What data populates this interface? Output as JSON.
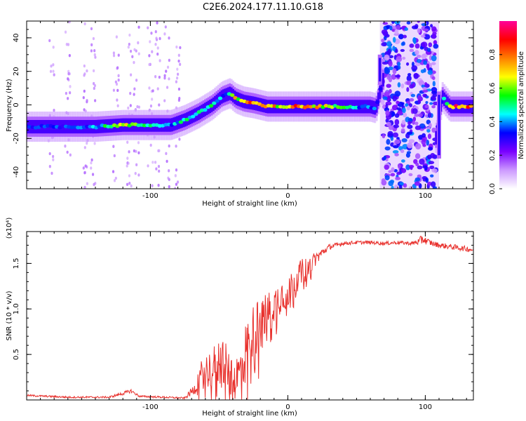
{
  "title": "C2E6.2024.177.11.10.G18",
  "chart_data": [
    {
      "type": "heatmap",
      "title": "",
      "xlabel": "Height of straight line (km)",
      "ylabel": "Frequency (Hz)",
      "xlim": [
        -190,
        135
      ],
      "ylim": [
        -50,
        50
      ],
      "x_ticks": [
        -100,
        0,
        100
      ],
      "x_tick_labels": [
        "-100",
        "0",
        "100"
      ],
      "y_ticks": [
        -40,
        -20,
        0,
        20,
        40
      ],
      "y_tick_labels": [
        "-40",
        "-20",
        "0",
        "20",
        "40"
      ],
      "colorbar": {
        "label": "Normalized spectral amplitude",
        "range": [
          0,
          1
        ],
        "ticks": [
          0.0,
          0.2,
          0.4,
          0.6,
          0.8
        ],
        "tick_labels": [
          "0.0",
          "0.2",
          "0.4",
          "0.6",
          "0.8"
        ],
        "colormap": [
          "#ffffff",
          "#cc99ff",
          "#7a00ff",
          "#0000ff",
          "#00ffff",
          "#00ff00",
          "#ffff00",
          "#ff8000",
          "#ff0000",
          "#ff0099"
        ]
      },
      "ridge": {
        "x": [
          -190,
          -180,
          -160,
          -140,
          -120,
          -100,
          -85,
          -75,
          -65,
          -55,
          -48,
          -42,
          -38,
          -32,
          -25,
          -15,
          -5,
          10,
          30,
          45,
          60,
          64,
          69,
          72,
          108,
          112,
          118,
          135
        ],
        "y": [
          -13,
          -13,
          -13,
          -13,
          -12,
          -12,
          -12,
          -9,
          -5,
          0,
          5,
          7,
          4,
          2,
          1,
          -1,
          -1,
          -1,
          -1,
          -1,
          -1,
          -2,
          15,
          15,
          -20,
          5,
          -1,
          -1
        ],
        "amplitude": [
          0.4,
          0.45,
          0.4,
          0.45,
          0.7,
          0.5,
          0.45,
          0.55,
          0.6,
          0.55,
          0.45,
          0.5,
          0.75,
          0.8,
          0.85,
          0.8,
          0.8,
          0.9,
          0.7,
          0.5,
          0.4,
          0.4,
          0.3,
          0.3,
          0.35,
          0.45,
          0.9,
          0.9
        ]
      },
      "noise_band": {
        "x_range": [
          69,
          108
        ],
        "amplitude": 0.25
      }
    },
    {
      "type": "line",
      "title": "",
      "xlabel": "Height of straight line (km)",
      "ylabel": "SNR (10 * v/v)",
      "y_multiplier": "(x10⁴)",
      "xlim": [
        -190,
        135
      ],
      "ylim": [
        0,
        1.85
      ],
      "x_ticks": [
        -100,
        0,
        100
      ],
      "x_tick_labels": [
        "-100",
        "0",
        "100"
      ],
      "y_ticks": [
        0.5,
        1.0,
        1.5
      ],
      "y_tick_labels": [
        "0.5",
        "1.0",
        "1.5"
      ],
      "color": "#e8302c",
      "series": [
        {
          "x": [
            -190,
            -160,
            -130,
            -118,
            -114,
            -108,
            -90,
            -75,
            -68,
            -62,
            -55,
            -48,
            -40,
            -35,
            -30,
            -25,
            -20,
            -15,
            -10,
            -5,
            0,
            5,
            10,
            15,
            20,
            25,
            30,
            40,
            50,
            60,
            70,
            80,
            90,
            96,
            98,
            100,
            105,
            110,
            120,
            130,
            135
          ],
          "y": [
            0.05,
            0.03,
            0.03,
            0.08,
            0.1,
            0.04,
            0.03,
            0.02,
            0.12,
            0.3,
            0.35,
            0.45,
            0.2,
            0.3,
            0.55,
            0.75,
            0.85,
            0.95,
            1.05,
            1.15,
            1.2,
            1.3,
            1.4,
            1.45,
            1.55,
            1.62,
            1.68,
            1.72,
            1.73,
            1.73,
            1.72,
            1.73,
            1.72,
            1.74,
            1.78,
            1.75,
            1.72,
            1.7,
            1.68,
            1.66,
            1.65
          ],
          "noise": [
            0.01,
            0.01,
            0.01,
            0.02,
            0.02,
            0.01,
            0.01,
            0.01,
            0.06,
            0.18,
            0.22,
            0.3,
            0.2,
            0.3,
            0.35,
            0.3,
            0.3,
            0.25,
            0.2,
            0.2,
            0.2,
            0.15,
            0.15,
            0.12,
            0.08,
            0.05,
            0.03,
            0.02,
            0.02,
            0.02,
            0.02,
            0.02,
            0.02,
            0.04,
            0.08,
            0.04,
            0.03,
            0.03,
            0.03,
            0.03,
            0.03
          ]
        }
      ]
    }
  ]
}
